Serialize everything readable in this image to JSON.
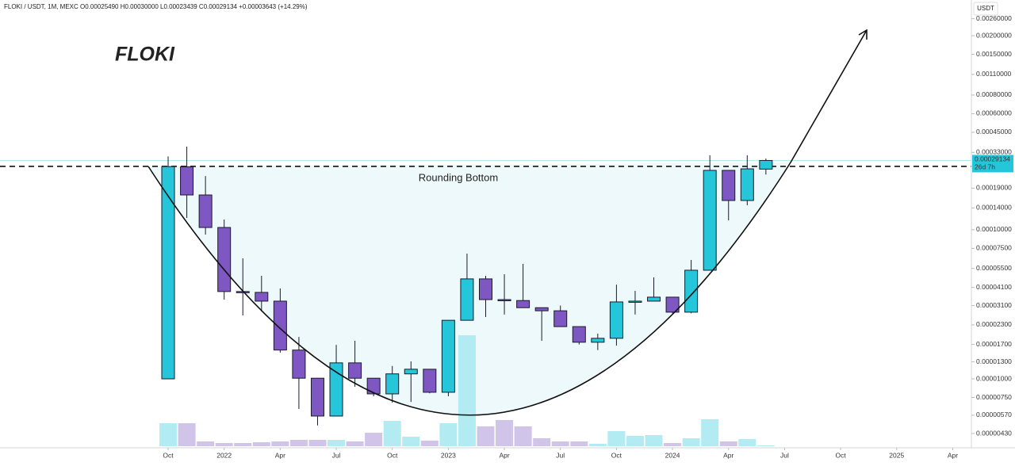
{
  "chart_data": {
    "type": "candlestick",
    "header": "FLOKI / USDT, 1M, MEXC  O0.00025490 H0.00030000 L0.00023439 C0.00029134 +0.00003643 (+14.29%)",
    "title": "FLOKI",
    "annotation": "Rounding Bottom",
    "currency": "USDT",
    "countdown": "26d 7h",
    "last_price": {
      "value": 0.00029134,
      "label": "0.00029134"
    },
    "resistance": 0.000266,
    "log_scale": true,
    "up_color": "#26c6da",
    "down_color": "#7e57c2",
    "volume_up_color": "#b2ebf2",
    "volume_down_color": "#d1c4e9",
    "x": [
      "2021-10",
      "2021-11",
      "2021-12",
      "2022-01",
      "2022-02",
      "2022-03",
      "2022-04",
      "2022-05",
      "2022-06",
      "2022-07",
      "2022-08",
      "2022-09",
      "2022-10",
      "2022-11",
      "2022-12",
      "2023-01",
      "2023-02",
      "2023-03",
      "2023-04",
      "2023-05",
      "2023-06",
      "2023-07",
      "2023-08",
      "2023-09",
      "2023-10",
      "2023-11",
      "2023-12",
      "2024-01",
      "2024-02",
      "2024-03",
      "2024-04",
      "2024-05",
      "2024-06"
    ],
    "open": [
      1e-05,
      0.000264,
      0.000171,
      0.0001035,
      3.85e-05,
      3.8e-05,
      3.32e-05,
      1.56e-05,
      1.01e-05,
      5.63e-06,
      1.28e-05,
      1.01e-05,
      7.93e-06,
      1.08e-05,
      1.16e-05,
      8.13e-06,
      2.47e-05,
      4.68e-05,
      3.4e-05,
      3.35e-05,
      3e-05,
      2.86e-05,
      2.24e-05,
      1.76e-05,
      1.87e-05,
      3.28e-05,
      3.32e-05,
      3.53e-05,
      2.8e-05,
      5.35e-05,
      0.00025,
      0.000157,
      0.0002549
    ],
    "high": [
      0.00031,
      0.000361,
      0.000229,
      0.000117,
      6.43e-05,
      4.91e-05,
      4.04e-05,
      1.91e-05,
      1.01e-05,
      1.69e-05,
      1.8e-05,
      1.01e-05,
      1.22e-05,
      1.31e-05,
      1.16e-05,
      2.47e-05,
      6.92e-05,
      4.91e-05,
      5.03e-05,
      5.9e-05,
      3e-05,
      3.1e-05,
      2.24e-05,
      2.01e-05,
      4.28e-05,
      3.89e-05,
      4.79e-05,
      3.53e-05,
      6.27e-05,
      0.000316,
      0.00025,
      0.000316,
      0.0003
    ],
    "low": [
      1e-05,
      0.00012,
      9.27e-05,
      3.4e-05,
      2.66e-05,
      2.83e-05,
      1.5e-05,
      6.28e-06,
      4.87e-06,
      5.63e-06,
      8.85e-06,
      7.64e-06,
      6.93e-06,
      7e-06,
      8e-06,
      7.64e-06,
      2.47e-05,
      2.6e-05,
      2.7e-05,
      3e-05,
      1.8e-05,
      2.24e-05,
      1.7e-05,
      1.56e-05,
      1.67e-05,
      2.7e-05,
      3.32e-05,
      2.75e-05,
      2.75e-05,
      5.35e-05,
      0.0001156,
      0.000146,
      0.00023439
    ],
    "close": [
      0.000265,
      0.000171,
      0.0001035,
      3.85e-05,
      3.8e-05,
      3.32e-05,
      1.56e-05,
      1.01e-05,
      5.63e-06,
      1.28e-05,
      1.01e-05,
      7.93e-06,
      1.08e-05,
      1.16e-05,
      8.13e-06,
      2.47e-05,
      4.68e-05,
      3.4e-05,
      3.35e-05,
      3e-05,
      2.86e-05,
      2.24e-05,
      1.76e-05,
      1.87e-05,
      3.28e-05,
      3.32e-05,
      3.53e-05,
      2.8e-05,
      5.35e-05,
      0.00025,
      0.000157,
      0.000256,
      0.00029134
    ],
    "volume": [
      29,
      29,
      6,
      4,
      4,
      5,
      6,
      8,
      8,
      8,
      6,
      17,
      32,
      12,
      7,
      29,
      140,
      25,
      33,
      25,
      10,
      6,
      6,
      3,
      19,
      13,
      14,
      4,
      10,
      34,
      6,
      9,
      1
    ],
    "xlim": [
      "2021-01",
      "2025-05"
    ],
    "xticks": [
      {
        "value": "2021-10",
        "label": "Oct"
      },
      {
        "value": "2022-01",
        "label": "2022"
      },
      {
        "value": "2022-04",
        "label": "Apr"
      },
      {
        "value": "2022-07",
        "label": "Jul"
      },
      {
        "value": "2022-10",
        "label": "Oct"
      },
      {
        "value": "2023-01",
        "label": "2023"
      },
      {
        "value": "2023-04",
        "label": "Apr"
      },
      {
        "value": "2023-07",
        "label": "Jul"
      },
      {
        "value": "2023-10",
        "label": "Oct"
      },
      {
        "value": "2024-01",
        "label": "2024"
      },
      {
        "value": "2024-04",
        "label": "Apr"
      },
      {
        "value": "2024-07",
        "label": "Jul"
      },
      {
        "value": "2024-10",
        "label": "Oct"
      },
      {
        "value": "2025-01",
        "label": "2025"
      },
      {
        "value": "2025-04",
        "label": "Apr"
      }
    ],
    "ylim": [
      3.45e-06,
      0.00347
    ],
    "yticks": [
      {
        "value": 0.0026,
        "label": "0.00260000"
      },
      {
        "value": 0.002,
        "label": "0.00200000"
      },
      {
        "value": 0.0015,
        "label": "0.00150000"
      },
      {
        "value": 0.0011,
        "label": "0.00110000"
      },
      {
        "value": 0.0008,
        "label": "0.00080000"
      },
      {
        "value": 0.0006,
        "label": "0.00060000"
      },
      {
        "value": 0.00045,
        "label": "0.00045000"
      },
      {
        "value": 0.00033,
        "label": "0.00033000"
      },
      {
        "value": 0.00019,
        "label": "0.00019000"
      },
      {
        "value": 0.00014,
        "label": "0.00014000"
      },
      {
        "value": 0.0001,
        "label": "0.00010000"
      },
      {
        "value": 7.5e-05,
        "label": "0.00007500"
      },
      {
        "value": 5.5e-05,
        "label": "0.00005500"
      },
      {
        "value": 4.1e-05,
        "label": "0.00004100"
      },
      {
        "value": 3.1e-05,
        "label": "0.00003100"
      },
      {
        "value": 2.3e-05,
        "label": "0.00002300"
      },
      {
        "value": 1.7e-05,
        "label": "0.00001700"
      },
      {
        "value": 1.3e-05,
        "label": "0.00001300"
      },
      {
        "value": 1e-05,
        "label": "0.00001000"
      },
      {
        "value": 7.5e-06,
        "label": "0.00000750"
      },
      {
        "value": 5.7e-06,
        "label": "0.00000570"
      },
      {
        "value": 4.3e-06,
        "label": "0.00000430"
      }
    ]
  }
}
